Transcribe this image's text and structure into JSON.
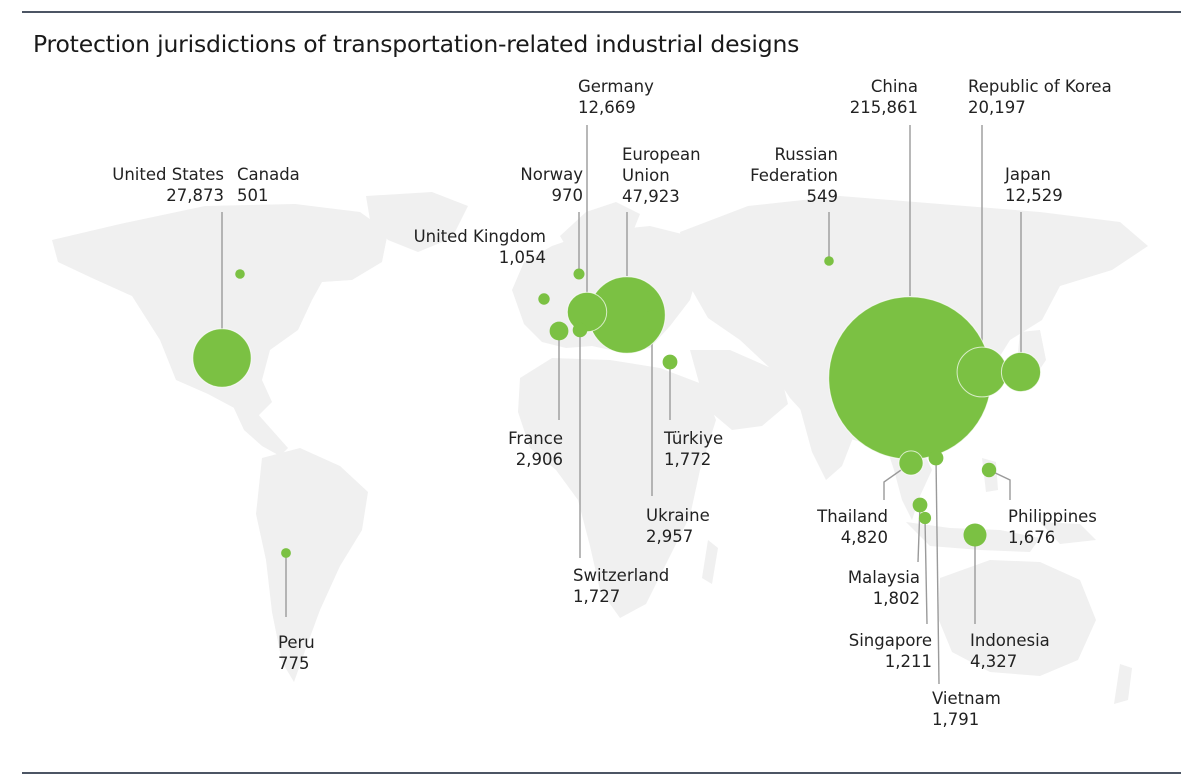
{
  "title": "Protection jurisdictions of transportation-related industrial designs",
  "colors": {
    "bubble": "#7bc143",
    "land": "#f0f0f0",
    "leader": "#9a9a9a",
    "rule": "#4c5564"
  },
  "jurisdictions": [
    {
      "id": "united-states",
      "name": "United States",
      "value": "27,873",
      "count": 27873
    },
    {
      "id": "canada",
      "name": "Canada",
      "value": "501",
      "count": 501
    },
    {
      "id": "peru",
      "name": "Peru",
      "value": "775",
      "count": 775
    },
    {
      "id": "united-kingdom",
      "name": "United Kingdom",
      "value": "1,054",
      "count": 1054
    },
    {
      "id": "norway",
      "name": "Norway",
      "value": "970",
      "count": 970
    },
    {
      "id": "germany",
      "name": "Germany",
      "value": "12,669",
      "count": 12669
    },
    {
      "id": "european-union",
      "name": [
        "European",
        "Union"
      ],
      "value": "47,923",
      "count": 47923
    },
    {
      "id": "france",
      "name": "France",
      "value": "2,906",
      "count": 2906
    },
    {
      "id": "switzerland",
      "name": "Switzerland",
      "value": "1,727",
      "count": 1727
    },
    {
      "id": "ukraine",
      "name": "Ukraine",
      "value": "2,957",
      "count": 2957
    },
    {
      "id": "turkiye",
      "name": "Türkiye",
      "value": "1,772",
      "count": 1772
    },
    {
      "id": "russian-federation",
      "name": [
        "Russian",
        "Federation"
      ],
      "value": "549",
      "count": 549
    },
    {
      "id": "china",
      "name": "China",
      "value": "215,861",
      "count": 215861
    },
    {
      "id": "republic-of-korea",
      "name": "Republic of Korea",
      "value": "20,197",
      "count": 20197
    },
    {
      "id": "japan",
      "name": "Japan",
      "value": "12,529",
      "count": 12529
    },
    {
      "id": "thailand",
      "name": "Thailand",
      "value": "4,820",
      "count": 4820
    },
    {
      "id": "vietnam",
      "name": "Vietnam",
      "value": "1,791",
      "count": 1791
    },
    {
      "id": "malaysia",
      "name": "Malaysia",
      "value": "1,802",
      "count": 1802
    },
    {
      "id": "singapore",
      "name": "Singapore",
      "value": "1,211",
      "count": 1211
    },
    {
      "id": "philippines",
      "name": "Philippines",
      "value": "1,676",
      "count": 1676
    },
    {
      "id": "indonesia",
      "name": "Indonesia",
      "value": "4,327",
      "count": 4327
    }
  ]
}
